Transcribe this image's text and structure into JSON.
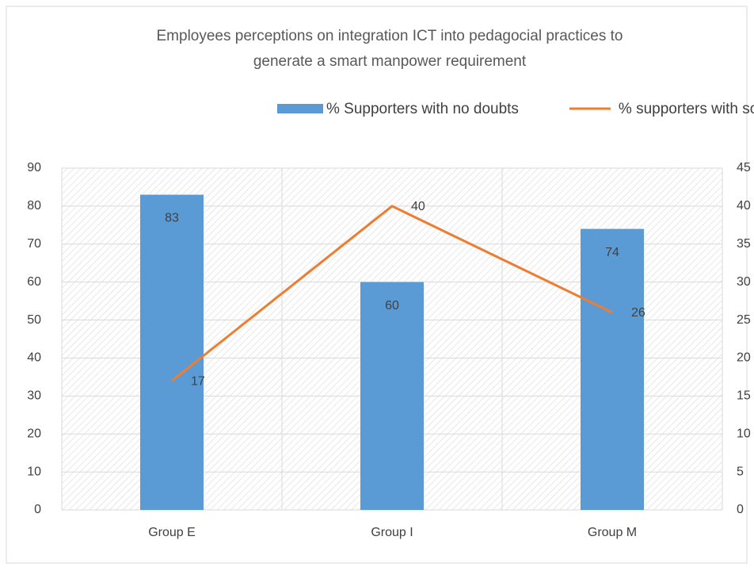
{
  "chart_data": {
    "type": "bar",
    "title": "Employees perceptions on integration ICT into pedagocial practices to generate a smart manpower requirement",
    "categories": [
      "Group E",
      "Group I",
      "Group M"
    ],
    "series": [
      {
        "name": "% Supporters with no doubts",
        "type": "bar",
        "color": "#5b9bd5",
        "values": [
          83,
          60,
          74
        ]
      },
      {
        "name": "% supporters with some doubts",
        "type": "line",
        "axis": "y2",
        "color": "#ed7d31",
        "values": [
          17,
          40,
          26
        ]
      }
    ],
    "ylim": [
      0,
      90
    ],
    "yticks": [
      0,
      10,
      20,
      30,
      40,
      50,
      60,
      70,
      80,
      90
    ],
    "y2lim": [
      0,
      45
    ],
    "y2ticks": [
      0,
      5,
      10,
      15,
      20,
      25,
      30,
      35,
      40,
      45
    ],
    "grid": true,
    "legend": "top"
  }
}
